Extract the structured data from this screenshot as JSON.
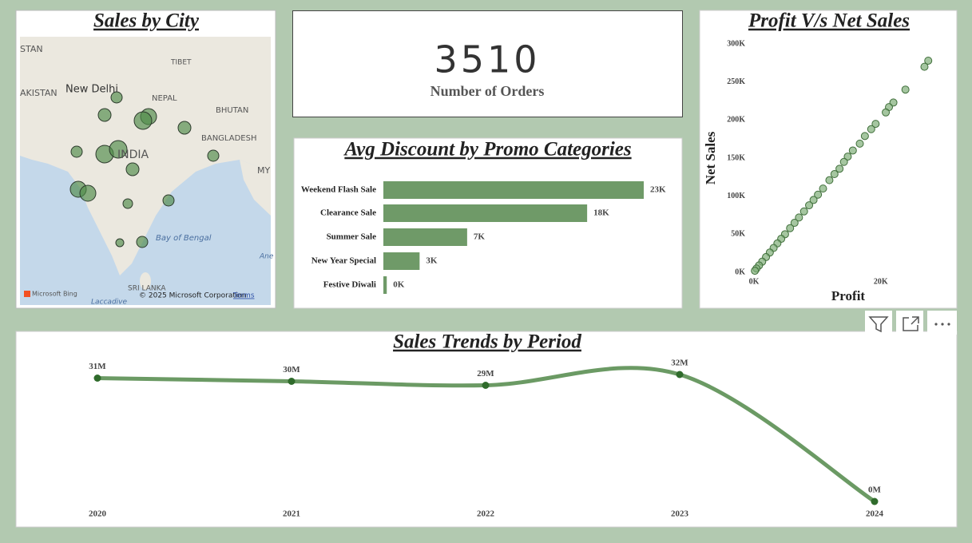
{
  "map": {
    "title": "Sales by City",
    "labels": [
      "STAN",
      "TIBET",
      "AKISTAN",
      "New Delhi",
      "NEPAL",
      "BHUTAN",
      "BANGLADESH",
      "INDIA",
      "MY",
      "Bay of Bengal",
      "Ane",
      "SRI LANKA",
      "Laccadive",
      "Microsoft Bing",
      "© 2025 Microsoft Corporation",
      "Terms"
    ]
  },
  "card": {
    "value": 3510,
    "label": "Number of Orders"
  },
  "chart_data": [
    {
      "type": "bar",
      "title": "Avg Discount by Promo Categories",
      "color": "#6f9a68",
      "categories": [
        "Weekend Flash Sale",
        "Clearance Sale",
        "Summer Sale",
        "New Year Special",
        "Festive Diwali"
      ],
      "values": [
        23000,
        18000,
        7400,
        3200,
        300
      ],
      "value_labels": [
        "23K",
        "18K",
        "7K",
        "3K",
        "0K"
      ]
    },
    {
      "type": "scatter",
      "title": "Profit V/s Net Sales",
      "x_label": "Profit",
      "y_label": "Net Sales",
      "color": "#7fae78",
      "x": [
        27500,
        26900,
        23900,
        22000,
        21300,
        20800,
        19200,
        18500,
        17500,
        16700,
        15600,
        14800,
        14200,
        13500,
        12700,
        11900,
        10900,
        10100,
        9400,
        8700,
        7900,
        7100,
        6400,
        5700,
        4900,
        4300,
        3700,
        3100,
        2500,
        1900,
        1300,
        800,
        400,
        150
      ],
      "y": [
        278000,
        270000,
        240000,
        223000,
        217000,
        210000,
        195000,
        188000,
        179000,
        169000,
        160000,
        152000,
        145000,
        136000,
        129000,
        121000,
        110000,
        102000,
        95000,
        88000,
        80000,
        72000,
        65000,
        58000,
        50000,
        44000,
        38000,
        32000,
        26000,
        20000,
        14000,
        9000,
        5000,
        2000
      ],
      "xlim": [
        0,
        31000
      ],
      "ylim": [
        0,
        300000
      ],
      "xticks": [
        {
          "value": 0,
          "label": "0K"
        },
        {
          "value": 20000,
          "label": "20K"
        }
      ],
      "yticks": [
        {
          "value": 0,
          "label": "0K"
        },
        {
          "value": 50000,
          "label": "50K"
        },
        {
          "value": 100000,
          "label": "100K"
        },
        {
          "value": 150000,
          "label": "150K"
        },
        {
          "value": 200000,
          "label": "200K"
        },
        {
          "value": 250000,
          "label": "250K"
        },
        {
          "value": 300000,
          "label": "300K"
        }
      ]
    },
    {
      "type": "line",
      "title": "Sales Trends by Period",
      "color": "#6b9a64",
      "categories": [
        "2020",
        "2021",
        "2022",
        "2023",
        "2024"
      ],
      "values": [
        31200000,
        30400000,
        29400000,
        32100000,
        300000
      ],
      "value_labels": [
        "31M",
        "30M",
        "29M",
        "32M",
        "0M"
      ]
    }
  ]
}
